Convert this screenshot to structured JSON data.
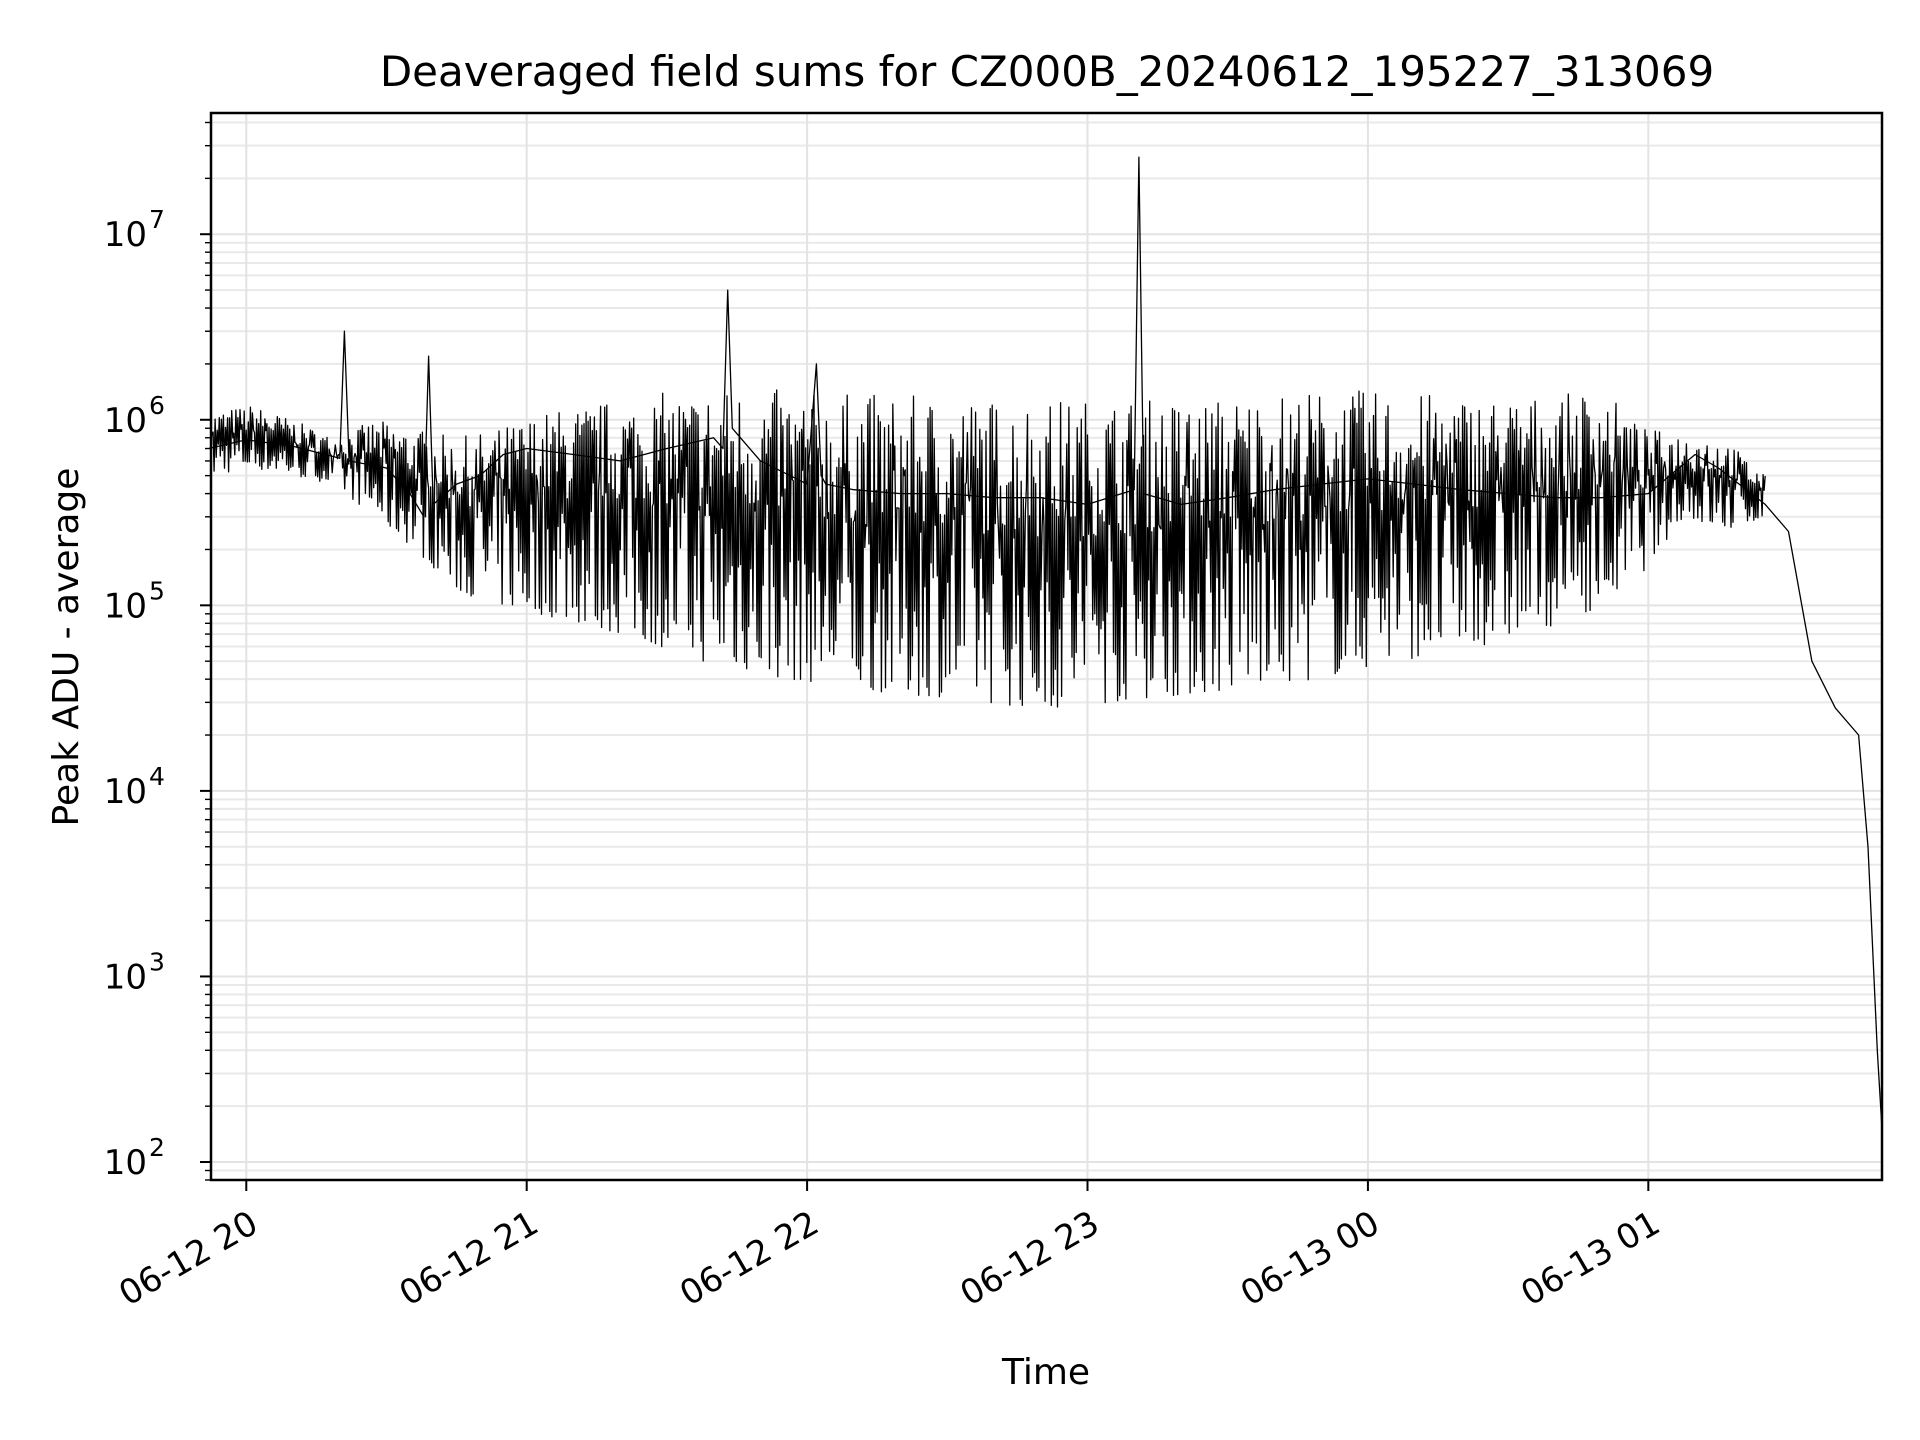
{
  "chart_data": {
    "type": "line",
    "title": "Deaveraged field sums for CZ000B_20240612_195227_313069",
    "xlabel": "Time",
    "ylabel": "Peak ADU - average",
    "yscale": "log",
    "xlim": [
      "2024-06-12 19:52:27",
      "2024-06-13 01:50:00"
    ],
    "ylim": [
      80,
      45000000
    ],
    "grid": true,
    "xticks": [
      {
        "label": "06-12 20",
        "t": "2024-06-12 20:00"
      },
      {
        "label": "06-12 21",
        "t": "2024-06-12 21:00"
      },
      {
        "label": "06-12 22",
        "t": "2024-06-12 22:00"
      },
      {
        "label": "06-12 23",
        "t": "2024-06-12 23:00"
      },
      {
        "label": "06-13 00",
        "t": "2024-06-13 00:00"
      },
      {
        "label": "06-13 01",
        "t": "2024-06-13 01:00"
      }
    ],
    "yticks": [
      {
        "base": "10",
        "exp": "2",
        "value": 100
      },
      {
        "base": "10",
        "exp": "3",
        "value": 1000
      },
      {
        "base": "10",
        "exp": "4",
        "value": 10000
      },
      {
        "base": "10",
        "exp": "5",
        "value": 100000
      },
      {
        "base": "10",
        "exp": "6",
        "value": 1000000
      },
      {
        "base": "10",
        "exp": "7",
        "value": 10000000
      }
    ],
    "series": [
      {
        "line_color": "#000000",
        "x": [
          "2024-06-12 19:52",
          "2024-06-12 20:00",
          "2024-06-12 20:10",
          "2024-06-12 20:20",
          "2024-06-12 20:21",
          "2024-06-12 20:22",
          "2024-06-12 20:30",
          "2024-06-12 20:35",
          "2024-06-12 20:38",
          "2024-06-12 20:39",
          "2024-06-12 20:40",
          "2024-06-12 20:45",
          "2024-06-12 20:50",
          "2024-06-12 20:55",
          "2024-06-12 21:00",
          "2024-06-12 21:10",
          "2024-06-12 21:20",
          "2024-06-12 21:30",
          "2024-06-12 21:40",
          "2024-06-12 21:42",
          "2024-06-12 21:43",
          "2024-06-12 21:44",
          "2024-06-12 21:50",
          "2024-06-12 22:00",
          "2024-06-12 22:02",
          "2024-06-12 22:03",
          "2024-06-12 22:04",
          "2024-06-12 22:10",
          "2024-06-12 22:20",
          "2024-06-12 22:30",
          "2024-06-12 22:40",
          "2024-06-12 22:50",
          "2024-06-12 23:00",
          "2024-06-12 23:10",
          "2024-06-12 23:11",
          "2024-06-12 23:12",
          "2024-06-12 23:20",
          "2024-06-12 23:30",
          "2024-06-12 23:40",
          "2024-06-12 23:50",
          "2024-06-13 00:00",
          "2024-06-13 00:10",
          "2024-06-13 00:20",
          "2024-06-13 00:30",
          "2024-06-13 00:40",
          "2024-06-13 00:50",
          "2024-06-13 01:00",
          "2024-06-13 01:10",
          "2024-06-13 01:15",
          "2024-06-13 01:25",
          "2024-06-13 01:30",
          "2024-06-13 01:35",
          "2024-06-13 01:40",
          "2024-06-13 01:45",
          "2024-06-13 01:47",
          "2024-06-13 01:49",
          "2024-06-13 01:50"
        ],
        "y": [
          700000,
          780000,
          720000,
          620000,
          3000000,
          600000,
          550000,
          400000,
          300000,
          2200000,
          350000,
          450000,
          500000,
          650000,
          700000,
          650000,
          600000,
          700000,
          800000,
          700000,
          5000000,
          900000,
          600000,
          450000,
          2000000,
          500000,
          450000,
          420000,
          400000,
          400000,
          380000,
          380000,
          350000,
          420000,
          26000000,
          400000,
          350000,
          380000,
          420000,
          450000,
          480000,
          450000,
          420000,
          400000,
          380000,
          380000,
          400000,
          650000,
          550000,
          350000,
          250000,
          50000,
          28000,
          20000,
          5000,
          400,
          150
        ],
        "band_upper": [
          1100000,
          1200000,
          1000000,
          800000,
          1000000,
          900000,
          800000,
          900000,
          1100000,
          1200000,
          1300000,
          1400000,
          1450000,
          1500000,
          1450000,
          1400000,
          1400000,
          1350000,
          1350000,
          1300000,
          1300000,
          1300000,
          1300000,
          1300000,
          1300000,
          1350000,
          1400000,
          1450000,
          1450000,
          1400000,
          1380000,
          1350000,
          1330000,
          1350000,
          1500000,
          900000,
          850000,
          800000,
          500000
        ],
        "band_lower": [
          500000,
          550000,
          500000,
          450000,
          300000,
          200000,
          120000,
          100000,
          90000,
          80000,
          70000,
          60000,
          50000,
          45000,
          40000,
          38000,
          35000,
          33000,
          32000,
          30000,
          28000,
          28000,
          30000,
          32000,
          33000,
          35000,
          38000,
          40000,
          45000,
          50000,
          55000,
          60000,
          70000,
          80000,
          100000,
          150000,
          300000,
          250000,
          300000
        ]
      }
    ]
  }
}
